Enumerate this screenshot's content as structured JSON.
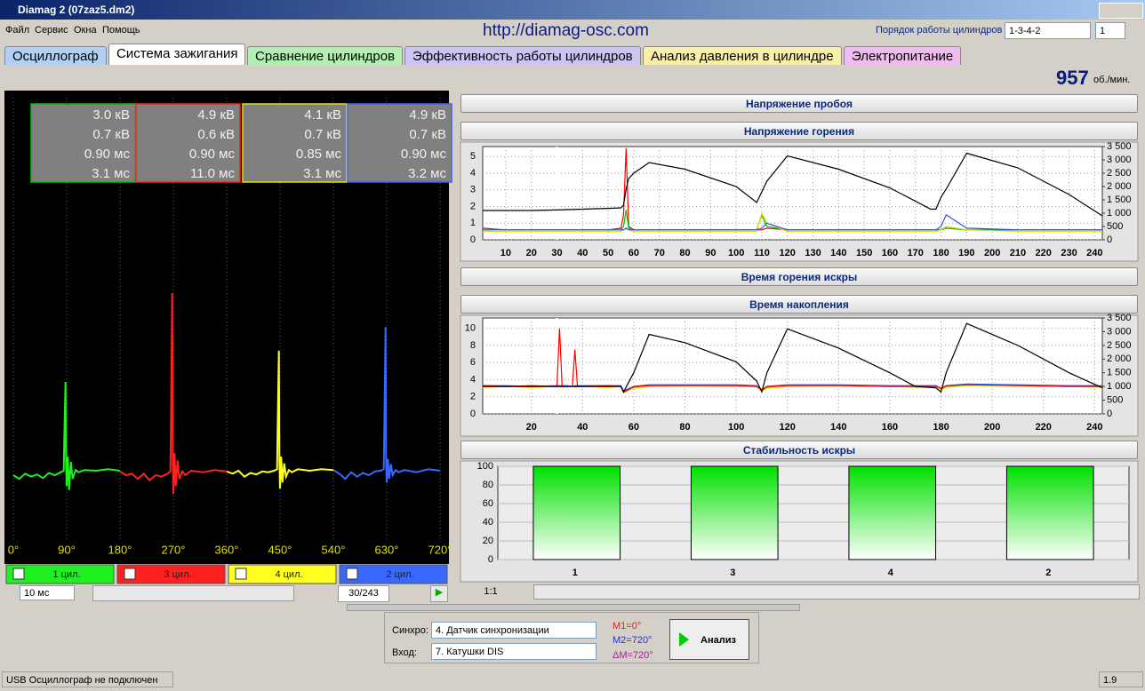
{
  "window": {
    "title": "Diamag 2 (07zaz5.dm2)",
    "menu": [
      "Файл",
      "Сервис",
      "Окна",
      "Помощь"
    ],
    "url": "http://diamag-osc.com",
    "order_label": "Порядок работы цилиндров",
    "order": "1-3-4-2",
    "spin": "1"
  },
  "tabs": [
    {
      "label": "Осциллограф",
      "color": "#b0d0f4"
    },
    {
      "label": "Система зажигания",
      "color": "#ffffff"
    },
    {
      "label": "Сравнение цилиндров",
      "color": "#b0f0b0"
    },
    {
      "label": "Эффективность работы цилиндров",
      "color": "#ccc4f4"
    },
    {
      "label": "Анализ давления в цилиндре",
      "color": "#f8f0a8"
    },
    {
      "label": "Электропитание",
      "color": "#f0bcf0"
    }
  ],
  "rpm": 957,
  "rpm_unit": "об./мин.",
  "scope_boxes": [
    {
      "color": "#00c000",
      "lines": [
        "3.0 кВ",
        "0.7 кВ",
        "0.90 мс",
        "3.1 мс"
      ]
    },
    {
      "color": "#ff2020",
      "lines": [
        "4.9 кВ",
        "0.6 кВ",
        "0.90 мс",
        "11.0 мс"
      ]
    },
    {
      "color": "#e0e000",
      "lines": [
        "4.1 кВ",
        "0.7 кВ",
        "0.85 мс",
        "3.1 мс"
      ]
    },
    {
      "color": "#4060ff",
      "lines": [
        "4.9 кВ",
        "0.7 кВ",
        "0.90 мс",
        "3.2 мс"
      ]
    }
  ],
  "scope_controls": {
    "timebase": "10 мс",
    "frame": "30/243"
  },
  "panels": [
    "Напряжение пробоя",
    "Время горения искры"
  ],
  "zoom": "1:1",
  "bottom": {
    "sync_label": "Синхро:",
    "sync": "4. Датчик синхронизации",
    "input_label": "Вход:",
    "input": "7. Катушки DIS",
    "m1": "M1=0°",
    "m2": "M2=720°",
    "dm": "ΔM=720°",
    "button": "Анализ"
  },
  "status": {
    "text": "USB Осциллограф не подключен",
    "version": "1.9"
  },
  "chart_data": [
    {
      "type": "line",
      "xlim": [
        0,
        720
      ],
      "ylim": [
        -10,
        50
      ],
      "grid": true,
      "xticks": [
        {
          "value": 0,
          "label": "0°"
        },
        {
          "value": 90,
          "label": "90°"
        },
        {
          "value": 180,
          "label": "180°"
        },
        {
          "value": 270,
          "label": "270°"
        },
        {
          "value": 360,
          "label": "360°"
        },
        {
          "value": 450,
          "label": "450°"
        },
        {
          "value": 540,
          "label": "540°"
        },
        {
          "value": 630,
          "label": "630°"
        },
        {
          "value": 720,
          "label": "720°"
        }
      ],
      "series": [
        {
          "name": "1 цил.",
          "color": "#20f020",
          "x": [
            0,
            10,
            20,
            30,
            40,
            50,
            60,
            70,
            80,
            85,
            86,
            88,
            89,
            90,
            92,
            94,
            97,
            100,
            105,
            110,
            120,
            140,
            160,
            180
          ],
          "values": [
            -1,
            -1.5,
            -0.8,
            -1.2,
            -0.9,
            -1.4,
            -0.7,
            -1,
            -0.6,
            -0.4,
            4,
            11.6,
            0.5,
            -2.5,
            1.5,
            -3,
            0.8,
            -1.5,
            -0.3,
            -0.6,
            -0.3,
            -0.4,
            -0.2,
            -0.4
          ]
        },
        {
          "name": "3 цил.",
          "color": "#ff2020",
          "x": [
            180,
            190,
            200,
            210,
            220,
            230,
            240,
            250,
            260,
            265,
            266,
            268,
            269,
            270,
            272,
            274,
            277,
            280,
            285,
            290,
            300,
            320,
            340,
            360
          ],
          "values": [
            -0.5,
            -1,
            -0.8,
            -1.5,
            -0.8,
            -1.7,
            -1,
            -1.2,
            -0.8,
            -0.5,
            6,
            23.6,
            1,
            -3.5,
            2,
            -2.5,
            1,
            -1.5,
            -0.5,
            -1,
            -0.4,
            -0.6,
            -0.3,
            -0.5
          ]
        },
        {
          "name": "4 цил.",
          "color": "#ffff20",
          "x": [
            360,
            370,
            380,
            390,
            400,
            410,
            420,
            430,
            440,
            445,
            446,
            448,
            449,
            450,
            452,
            454,
            457,
            460,
            465,
            470,
            480,
            500,
            520,
            540
          ],
          "values": [
            -0.5,
            -0.8,
            -0.4,
            -1.2,
            -0.7,
            -0.9,
            -0.5,
            -0.6,
            -0.4,
            -0.2,
            5,
            15.8,
            1,
            -2.8,
            1.5,
            -2,
            0.6,
            -1.2,
            -0.3,
            -0.6,
            -0.2,
            -0.4,
            -0.2,
            -0.3
          ]
        },
        {
          "name": "2 цил.",
          "color": "#3868ff",
          "x": [
            540,
            550,
            560,
            570,
            580,
            590,
            600,
            610,
            620,
            625,
            626,
            628,
            629,
            630,
            632,
            634,
            637,
            640,
            645,
            650,
            660,
            680,
            700,
            720
          ],
          "values": [
            -0.3,
            -0.8,
            -1.5,
            -0.6,
            -1.2,
            -0.7,
            -1,
            -0.5,
            -0.4,
            -0.2,
            5,
            19,
            1,
            -2,
            1.2,
            -1.5,
            0.5,
            -1,
            -0.3,
            -0.6,
            -0.3,
            -0.6,
            -0.2,
            -0.4
          ]
        }
      ]
    },
    {
      "type": "line",
      "title": "Напряжение горения",
      "grid": true,
      "cursor": 30,
      "xlim": [
        1,
        243
      ],
      "xticks": [
        10,
        20,
        30,
        40,
        50,
        60,
        70,
        80,
        90,
        100,
        110,
        120,
        130,
        140,
        150,
        160,
        170,
        180,
        190,
        200,
        210,
        220,
        230,
        240
      ],
      "ylim": [
        0,
        5.6
      ],
      "yticks": [
        0,
        1,
        2,
        3,
        4,
        5
      ],
      "y2lim": [
        0,
        3500
      ],
      "y2ticks": [
        0,
        500,
        {
          "value": 1000,
          "label": "1 000"
        },
        {
          "value": 1500,
          "label": "1 500"
        },
        {
          "value": 2000,
          "label": "2 000"
        },
        {
          "value": 2500,
          "label": "2 500"
        },
        {
          "value": 3000,
          "label": "3 000"
        },
        {
          "value": 3500,
          "label": "3 500"
        }
      ],
      "x": [
        1,
        10,
        20,
        30,
        40,
        50,
        55,
        56,
        57,
        58,
        60,
        66,
        80,
        100,
        108,
        110,
        112,
        120,
        140,
        160,
        176,
        178,
        180,
        182,
        190,
        210,
        230,
        243
      ],
      "series": [
        {
          "color": "#ff0000",
          "values": [
            0.7,
            0.6,
            0.6,
            0.6,
            0.6,
            0.6,
            0.7,
            1.5,
            5.5,
            0.8,
            0.6,
            0.6,
            0.6,
            0.6,
            0.6,
            0.6,
            0.7,
            0.6,
            0.6,
            0.6,
            0.6,
            0.6,
            0.6,
            0.7,
            0.6,
            0.6,
            0.6,
            0.6
          ]
        },
        {
          "color": "#00c000",
          "values": [
            0.6,
            0.6,
            0.6,
            0.6,
            0.6,
            0.6,
            0.6,
            0.8,
            1.8,
            0.7,
            0.6,
            0.6,
            0.6,
            0.6,
            0.6,
            1.5,
            0.8,
            0.6,
            0.6,
            0.6,
            0.6,
            0.6,
            0.6,
            0.7,
            0.6,
            0.6,
            0.6,
            0.6
          ]
        },
        {
          "color": "#e0e000",
          "values": [
            0.5,
            0.5,
            0.5,
            0.5,
            0.5,
            0.5,
            0.5,
            0.6,
            0.7,
            0.6,
            0.5,
            0.5,
            0.5,
            0.5,
            0.5,
            1.6,
            1.0,
            0.5,
            0.5,
            0.5,
            0.5,
            0.5,
            0.6,
            0.8,
            0.6,
            0.5,
            0.5,
            0.5
          ]
        },
        {
          "color": "#3050ff",
          "values": [
            0.6,
            0.6,
            0.6,
            0.6,
            0.6,
            0.6,
            0.6,
            0.6,
            0.7,
            0.6,
            0.6,
            0.6,
            0.6,
            0.6,
            0.6,
            0.7,
            1.0,
            0.6,
            0.6,
            0.6,
            0.6,
            0.6,
            0.8,
            1.5,
            0.7,
            0.6,
            0.6,
            0.6
          ]
        },
        {
          "color": "#000000",
          "axis": "y2",
          "values": [
            1100,
            1100,
            1100,
            1120,
            1150,
            1180,
            1200,
            1300,
            1900,
            2300,
            2500,
            2900,
            2650,
            2000,
            1400,
            1800,
            2200,
            3150,
            2650,
            1950,
            1150,
            1150,
            1600,
            1900,
            3250,
            2700,
            1700,
            900
          ]
        }
      ]
    },
    {
      "type": "line",
      "title": "Время накопления",
      "grid": true,
      "cursor": 30,
      "xlim": [
        1,
        243
      ],
      "xticks": [
        20,
        40,
        60,
        80,
        100,
        120,
        140,
        160,
        180,
        200,
        220,
        240
      ],
      "ylim": [
        0,
        11.2
      ],
      "yticks": [
        0,
        2,
        4,
        6,
        8,
        10
      ],
      "y2lim": [
        0,
        3500
      ],
      "y2ticks": [
        0,
        500,
        {
          "value": 1000,
          "label": "1 000"
        },
        {
          "value": 1500,
          "label": "1 500"
        },
        {
          "value": 2000,
          "label": "2 000"
        },
        {
          "value": 2500,
          "label": "2 500"
        },
        {
          "value": 3000,
          "label": "3 000"
        },
        {
          "value": 3500,
          "label": "3 500"
        }
      ],
      "x": [
        1,
        10,
        20,
        30,
        31,
        32,
        34,
        36,
        37,
        38,
        40,
        50,
        55,
        56,
        60,
        66,
        80,
        100,
        108,
        110,
        112,
        120,
        140,
        160,
        170,
        178,
        180,
        182,
        190,
        210,
        230,
        243
      ],
      "series": [
        {
          "color": "#00c000",
          "values": [
            3.2,
            3.2,
            3.2,
            3.2,
            3.2,
            3.2,
            3.2,
            3.2,
            3.2,
            3.2,
            3.2,
            3.2,
            3.2,
            2.6,
            3.1,
            3.3,
            3.3,
            3.3,
            3.2,
            2.7,
            3.1,
            3.3,
            3.3,
            3.2,
            3.2,
            3.2,
            2.9,
            3.2,
            3.4,
            3.3,
            3.2,
            3.2
          ]
        },
        {
          "color": "#e0e000",
          "values": [
            3.1,
            3.2,
            3.1,
            3.2,
            3.2,
            3.1,
            3.2,
            3.2,
            3.1,
            3.2,
            3.2,
            3.1,
            3.2,
            2.5,
            3.0,
            3.2,
            3.3,
            3.2,
            3.2,
            2.6,
            3.0,
            3.2,
            3.3,
            3.2,
            3.1,
            3.2,
            2.8,
            3.1,
            3.3,
            3.3,
            3.2,
            3.1
          ]
        },
        {
          "color": "#3050ff",
          "values": [
            3.3,
            3.3,
            3.2,
            3.3,
            3.3,
            3.3,
            3.3,
            3.2,
            3.3,
            3.3,
            3.3,
            3.3,
            3.3,
            2.7,
            3.2,
            3.4,
            3.4,
            3.4,
            3.3,
            2.8,
            3.2,
            3.4,
            3.4,
            3.3,
            3.3,
            3.3,
            3.0,
            3.3,
            3.5,
            3.4,
            3.3,
            3.3
          ]
        },
        {
          "color": "#ff0000",
          "values": [
            3.3,
            3.2,
            3.3,
            3.2,
            10,
            3.2,
            3.2,
            3.2,
            7.5,
            3.2,
            3.2,
            3.3,
            3.2,
            2.5,
            3.2,
            3.3,
            3.3,
            3.3,
            3.2,
            2.8,
            3.2,
            3.3,
            3.3,
            3.2,
            3.2,
            3.2,
            3.0,
            3.3,
            3.4,
            3.3,
            3.2,
            3.2
          ]
        },
        {
          "color": "#000000",
          "axis": "y2",
          "values": [
            1000,
            1000,
            1000,
            1000,
            1000,
            1000,
            1000,
            1000,
            1000,
            1000,
            1000,
            1000,
            1000,
            800,
            1500,
            2900,
            2600,
            1900,
            1200,
            800,
            1500,
            3100,
            2400,
            1500,
            1000,
            950,
            800,
            1500,
            3300,
            2500,
            1500,
            950
          ]
        }
      ]
    },
    {
      "type": "bar",
      "title": "Стабильность искры",
      "categories": [
        "1",
        "3",
        "4",
        "2"
      ],
      "values": [
        100,
        100,
        100,
        100
      ],
      "color": "#00e000",
      "ylim": [
        0,
        100
      ],
      "yticks": [
        0,
        20,
        40,
        60,
        80,
        100
      ],
      "grid": true
    }
  ]
}
